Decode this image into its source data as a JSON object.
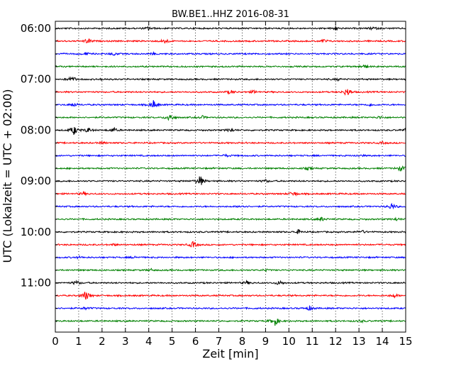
{
  "chart_data": {
    "type": "line",
    "title": "BW.BE1..HHZ 2016-08-31",
    "xlabel": "Zeit  [min]",
    "ylabel": "UTC (Lokalzeit = UTC + 02:00)",
    "xlim": [
      0,
      15
    ],
    "x_ticks": [
      "0",
      "1",
      "2",
      "3",
      "4",
      "5",
      "6",
      "7",
      "8",
      "9",
      "10",
      "11",
      "12",
      "13",
      "14",
      "15"
    ],
    "y_ticks": [
      "06:00",
      "07:00",
      "08:00",
      "09:00",
      "10:00",
      "11:00"
    ],
    "grid": "vertical dotted",
    "colors": [
      "#000000",
      "#ff0000",
      "#0000ff",
      "#008000"
    ],
    "traces": [
      {
        "start": "06:00",
        "events": [
          [
            4.0,
            0.25
          ],
          [
            12.0,
            0.3
          ],
          [
            13.6,
            0.25
          ]
        ]
      },
      {
        "start": "06:15",
        "events": [
          [
            1.4,
            0.45
          ],
          [
            4.7,
            0.4
          ],
          [
            11.5,
            0.25
          ]
        ]
      },
      {
        "start": "06:30",
        "events": [
          [
            1.3,
            0.2
          ],
          [
            2.5,
            0.2
          ],
          [
            4.2,
            0.15
          ]
        ]
      },
      {
        "start": "06:45",
        "events": [
          [
            13.1,
            0.2
          ],
          [
            13.3,
            0.15
          ]
        ]
      },
      {
        "start": "07:00",
        "events": [
          [
            0.7,
            0.5
          ],
          [
            2.0,
            0.1
          ],
          [
            12.1,
            0.15
          ]
        ]
      },
      {
        "start": "07:15",
        "events": [
          [
            7.5,
            0.3
          ],
          [
            8.5,
            0.2
          ],
          [
            12.5,
            0.7
          ]
        ]
      },
      {
        "start": "07:30",
        "events": [
          [
            0.8,
            0.25
          ],
          [
            4.2,
            0.65
          ],
          [
            13.5,
            0.2
          ]
        ]
      },
      {
        "start": "07:45",
        "events": [
          [
            4.9,
            0.7
          ],
          [
            6.3,
            0.2
          ],
          [
            13.9,
            0.2
          ]
        ]
      },
      {
        "start": "08:00",
        "events": [
          [
            0.8,
            0.75
          ],
          [
            1.4,
            0.4
          ],
          [
            2.5,
            0.35
          ],
          [
            7.5,
            0.3
          ],
          [
            15.0,
            0.2
          ]
        ]
      },
      {
        "start": "08:15",
        "events": [
          [
            2.0,
            0.15
          ],
          [
            14.0,
            0.15
          ]
        ]
      },
      {
        "start": "08:30",
        "events": [
          [
            7.3,
            0.2
          ],
          [
            13.0,
            0.15
          ]
        ]
      },
      {
        "start": "08:45",
        "events": [
          [
            10.8,
            0.2
          ],
          [
            14.8,
            0.45
          ]
        ]
      },
      {
        "start": "09:00",
        "events": [
          [
            6.2,
            0.9
          ],
          [
            9.0,
            0.2
          ]
        ]
      },
      {
        "start": "09:15",
        "events": [
          [
            1.2,
            0.2
          ],
          [
            10.2,
            0.4
          ]
        ]
      },
      {
        "start": "09:30",
        "events": [
          [
            8.0,
            0.2
          ],
          [
            14.4,
            0.5
          ]
        ]
      },
      {
        "start": "09:45",
        "events": [
          [
            11.4,
            0.3
          ],
          [
            14.6,
            0.2
          ]
        ]
      },
      {
        "start": "10:00",
        "events": [
          [
            10.4,
            0.3
          ],
          [
            13.1,
            0.3
          ]
        ]
      },
      {
        "start": "10:15",
        "events": [
          [
            5.9,
            0.5
          ],
          [
            2.5,
            0.15
          ]
        ]
      },
      {
        "start": "10:30",
        "events": [
          [
            1.0,
            0.15
          ],
          [
            3.4,
            0.15
          ]
        ]
      },
      {
        "start": "10:45",
        "events": [
          [
            4.1,
            0.15
          ],
          [
            9.0,
            0.15
          ]
        ]
      },
      {
        "start": "11:00",
        "events": [
          [
            0.9,
            0.35
          ],
          [
            8.2,
            0.25
          ],
          [
            9.6,
            0.35
          ]
        ]
      },
      {
        "start": "11:15",
        "events": [
          [
            1.3,
            0.8
          ],
          [
            14.5,
            0.3
          ]
        ]
      },
      {
        "start": "11:30",
        "events": [
          [
            1.3,
            0.2
          ],
          [
            10.9,
            0.35
          ]
        ]
      },
      {
        "start": "11:45",
        "events": [
          [
            9.4,
            0.75
          ],
          [
            13.1,
            0.15
          ]
        ]
      }
    ]
  }
}
